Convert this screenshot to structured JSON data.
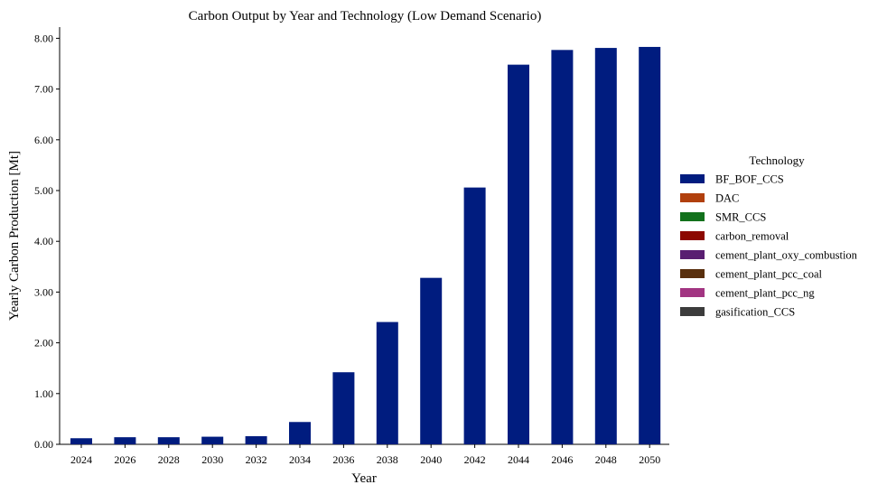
{
  "chart_data": {
    "type": "bar",
    "title": "Carbon Output by Year and Technology (Low Demand Scenario)",
    "xlabel": "Year",
    "ylabel": "Yearly Carbon Production [Mt]",
    "categories": [
      "2024",
      "2026",
      "2028",
      "2030",
      "2032",
      "2034",
      "2036",
      "2038",
      "2040",
      "2042",
      "2044",
      "2046",
      "2048",
      "2050"
    ],
    "yticks": [
      "0.00",
      "1.00",
      "2.00",
      "3.00",
      "4.00",
      "5.00",
      "6.00",
      "7.00",
      "8.00"
    ],
    "ylim": [
      0,
      8.2
    ],
    "stacked": true,
    "grid": false,
    "legend": {
      "title": "Technology",
      "position": "right"
    },
    "series": [
      {
        "name": "BF_BOF_CCS",
        "color": "#001c7f",
        "values": [
          0.12,
          0.14,
          0.14,
          0.15,
          0.16,
          0.44,
          1.42,
          2.41,
          3.28,
          5.06,
          7.48,
          7.77,
          7.81,
          7.83
        ]
      },
      {
        "name": "DAC",
        "color": "#b1400d",
        "values": [
          0,
          0,
          0,
          0,
          0,
          0,
          0,
          0,
          0,
          0,
          0,
          0,
          0,
          0
        ]
      },
      {
        "name": "SMR_CCS",
        "color": "#12711c",
        "values": [
          0,
          0,
          0,
          0,
          0,
          0,
          0,
          0,
          0,
          0,
          0,
          0,
          0,
          0
        ]
      },
      {
        "name": "carbon_removal",
        "color": "#8c0800",
        "values": [
          0,
          0,
          0,
          0,
          0,
          0,
          0,
          0,
          0,
          0,
          0,
          0,
          0,
          0
        ]
      },
      {
        "name": "cement_plant_oxy_combustion",
        "color": "#591e71",
        "values": [
          0,
          0,
          0,
          0,
          0,
          0,
          0,
          0,
          0,
          0,
          0,
          0,
          0,
          0
        ]
      },
      {
        "name": "cement_plant_pcc_coal",
        "color": "#592f0d",
        "values": [
          0,
          0,
          0,
          0,
          0,
          0,
          0,
          0,
          0,
          0,
          0,
          0,
          0,
          0
        ]
      },
      {
        "name": "cement_plant_pcc_ng",
        "color": "#a23582",
        "values": [
          0,
          0,
          0,
          0,
          0,
          0,
          0,
          0,
          0,
          0,
          0,
          0,
          0,
          0
        ]
      },
      {
        "name": "gasification_CCS",
        "color": "#3c3c3c",
        "values": [
          0,
          0,
          0,
          0,
          0,
          0,
          0,
          0,
          0,
          0,
          0,
          0,
          0,
          0
        ]
      }
    ]
  }
}
